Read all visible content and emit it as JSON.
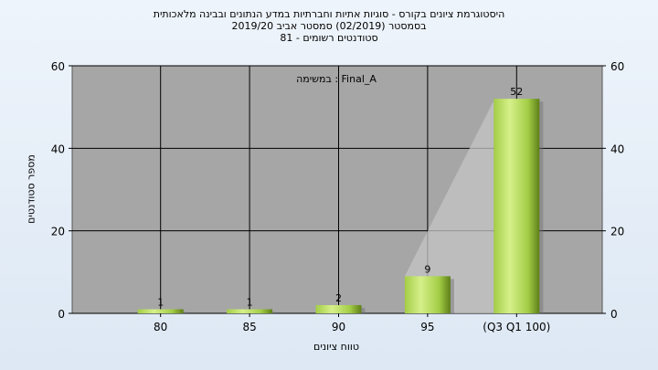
{
  "title_lines": [
    "היסטוגרמת ציונים בקורס - סוגיות אתיות וחברתיות במדע הנתונים ובבינה מלאכותית",
    "בסמסטר  (02/2019)  סמסטר אביב 2019/20",
    "סטודנטים רשומים - 81"
  ],
  "chart_data": {
    "type": "bar",
    "title": "היסטוגרמת ציונים בקורס - סוגיות אתיות וחברתיות במדע הנתונים ובבינה מלאכותית",
    "xlabel": "טווח ציונים",
    "ylabel": "מספר סטודנטים",
    "annotation": "במשימה : Final_A",
    "categories": [
      "80",
      "85",
      "90",
      "95",
      "(Q3 Q1 100)"
    ],
    "values": [
      1,
      1,
      2,
      9,
      52
    ],
    "ylim": [
      0,
      60
    ],
    "yticks": [
      0,
      20,
      40,
      60
    ],
    "secondary_y_axis": true,
    "grid": true,
    "legend": "none",
    "colors": {
      "plot_background": "#a6a6a6",
      "bar_light": "#d6f08a",
      "bar_mid": "#a3cd46",
      "bar_dark": "#5e7f18",
      "gridline": "#000000"
    }
  }
}
